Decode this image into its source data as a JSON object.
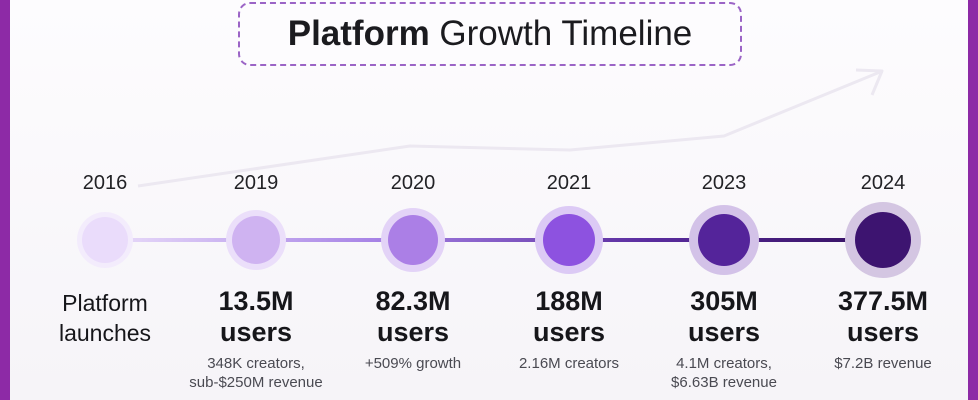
{
  "title": {
    "bold": "Platform",
    "rest": " Growth Timeline"
  },
  "milestones": [
    {
      "year": "2016",
      "line1": "Platform",
      "line2": "launches",
      "detail1": "",
      "detail2": "",
      "color": "#eadcfb",
      "halo": "#f3ecfc"
    },
    {
      "year": "2019",
      "line1": "13.5M",
      "line2": "users",
      "detail1": "348K creators,",
      "detail2": "sub-$250M revenue",
      "color": "#cfb3f1",
      "halo": "#ebdffa"
    },
    {
      "year": "2020",
      "line1": "82.3M",
      "line2": "users",
      "detail1": "+509% growth",
      "detail2": "",
      "color": "#ab7fe6",
      "halo": "#e3d3f7"
    },
    {
      "year": "2021",
      "line1": "188M",
      "line2": "users",
      "detail1": "2.16M creators",
      "detail2": "",
      "color": "#8d52e0",
      "halo": "#dccaf5"
    },
    {
      "year": "2023",
      "line1": "305M",
      "line2": "users",
      "detail1": "4.1M creators,",
      "detail2": "$6.63B revenue",
      "color": "#54249a",
      "halo": "#d3c2e8"
    },
    {
      "year": "2024",
      "line1": "377.5M",
      "line2": "users",
      "detail1": "$7.2B revenue",
      "detail2": "",
      "color": "#3d1470",
      "halo": "#d4c6e2"
    }
  ]
}
